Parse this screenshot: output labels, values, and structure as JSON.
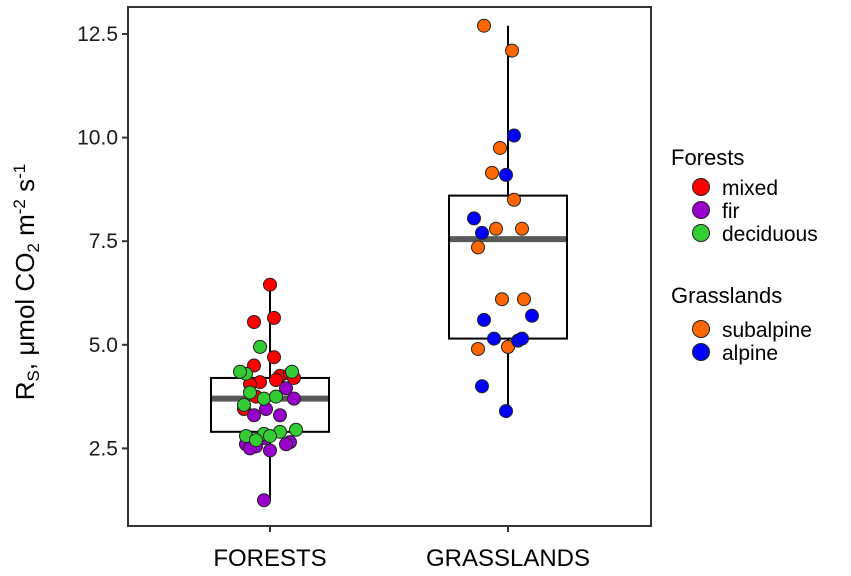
{
  "chart_data": {
    "type": "box",
    "title": "",
    "xlabel": "",
    "ylabel": {
      "main": "R",
      "sub": "S",
      "units_a": ", μmol CO",
      "units_sub": "2",
      "units_b": " m",
      "units_sup1": "-2",
      "units_c": " s",
      "units_sup2": "-1"
    },
    "ylim": [
      1.0,
      13.3
    ],
    "yticks": [
      2.5,
      5.0,
      7.5,
      10.0,
      12.5
    ],
    "ytick_labels": [
      "2.5",
      "5.0",
      "7.5",
      "10.0",
      "12.5"
    ],
    "grid": false,
    "legend_position": "right",
    "categories": [
      "FORESTS",
      "GRASSLANDS"
    ],
    "boxes": [
      {
        "category": "FORESTS",
        "min": 1.25,
        "q1": 2.9,
        "median": 3.7,
        "q3": 4.2,
        "max": 6.45
      },
      {
        "category": "GRASSLANDS",
        "min": 3.4,
        "q1": 5.15,
        "median": 7.55,
        "q3": 8.6,
        "max": 12.7
      }
    ],
    "legend_groups": [
      {
        "title": "Forests",
        "items": [
          {
            "label": "mixed",
            "color": "#ff0000"
          },
          {
            "label": "fir",
            "color": "#9900cc"
          },
          {
            "label": "deciduous",
            "color": "#33cc33"
          }
        ]
      },
      {
        "title": "Grasslands",
        "items": [
          {
            "label": "subalpine",
            "color": "#ff6600"
          },
          {
            "label": "alpine",
            "color": "#0000ff"
          }
        ]
      }
    ],
    "series": [
      {
        "name": "mixed",
        "category": "FORESTS",
        "color": "#ff0000",
        "points": [
          [
            0.0,
            6.45
          ],
          [
            -0.08,
            5.55
          ],
          [
            0.02,
            5.65
          ],
          [
            -0.08,
            4.5
          ],
          [
            0.02,
            4.7
          ],
          [
            0.05,
            4.25
          ],
          [
            -0.05,
            4.1
          ],
          [
            0.03,
            4.15
          ],
          [
            0.1,
            4.3
          ],
          [
            -0.1,
            4.05
          ],
          [
            0.12,
            4.2
          ],
          [
            -0.07,
            3.75
          ],
          [
            -0.13,
            3.45
          ]
        ]
      },
      {
        "name": "fir",
        "category": "FORESTS",
        "color": "#9900cc",
        "points": [
          [
            0.08,
            3.95
          ],
          [
            0.12,
            3.7
          ],
          [
            -0.02,
            3.45
          ],
          [
            0.05,
            3.3
          ],
          [
            -0.08,
            3.3
          ],
          [
            0.1,
            2.65
          ],
          [
            0.08,
            2.6
          ],
          [
            -0.12,
            2.6
          ],
          [
            -0.07,
            2.55
          ],
          [
            -0.1,
            2.5
          ],
          [
            0.0,
            2.45
          ],
          [
            -0.03,
            2.75
          ],
          [
            -0.03,
            1.25
          ]
        ]
      },
      {
        "name": "deciduous",
        "category": "FORESTS",
        "color": "#33cc33",
        "points": [
          [
            -0.12,
            4.3
          ],
          [
            -0.05,
            4.95
          ],
          [
            0.11,
            4.35
          ],
          [
            -0.15,
            4.35
          ],
          [
            -0.1,
            3.85
          ],
          [
            -0.13,
            3.55
          ],
          [
            -0.03,
            3.7
          ],
          [
            0.03,
            3.75
          ],
          [
            0.13,
            2.95
          ],
          [
            0.05,
            2.9
          ],
          [
            -0.03,
            2.85
          ],
          [
            -0.12,
            2.8
          ],
          [
            -0.07,
            2.7
          ],
          [
            0.0,
            2.8
          ]
        ]
      },
      {
        "name": "subalpine",
        "category": "GRASSLANDS",
        "color": "#ff6600",
        "points": [
          [
            -0.12,
            12.7
          ],
          [
            0.02,
            12.1
          ],
          [
            -0.04,
            9.75
          ],
          [
            -0.08,
            9.15
          ],
          [
            0.03,
            8.5
          ],
          [
            -0.06,
            7.8
          ],
          [
            0.07,
            7.8
          ],
          [
            -0.15,
            7.35
          ],
          [
            -0.03,
            6.1
          ],
          [
            0.08,
            6.1
          ],
          [
            -0.15,
            4.9
          ],
          [
            0.0,
            4.95
          ]
        ]
      },
      {
        "name": "alpine",
        "category": "GRASSLANDS",
        "color": "#0000ff",
        "points": [
          [
            0.03,
            10.05
          ],
          [
            -0.01,
            9.1
          ],
          [
            -0.17,
            8.05
          ],
          [
            -0.13,
            7.7
          ],
          [
            -0.12,
            5.6
          ],
          [
            0.12,
            5.7
          ],
          [
            -0.07,
            5.15
          ],
          [
            0.05,
            5.1
          ],
          [
            0.07,
            5.15
          ],
          [
            -0.13,
            4.0
          ],
          [
            -0.01,
            3.4
          ]
        ]
      }
    ]
  }
}
